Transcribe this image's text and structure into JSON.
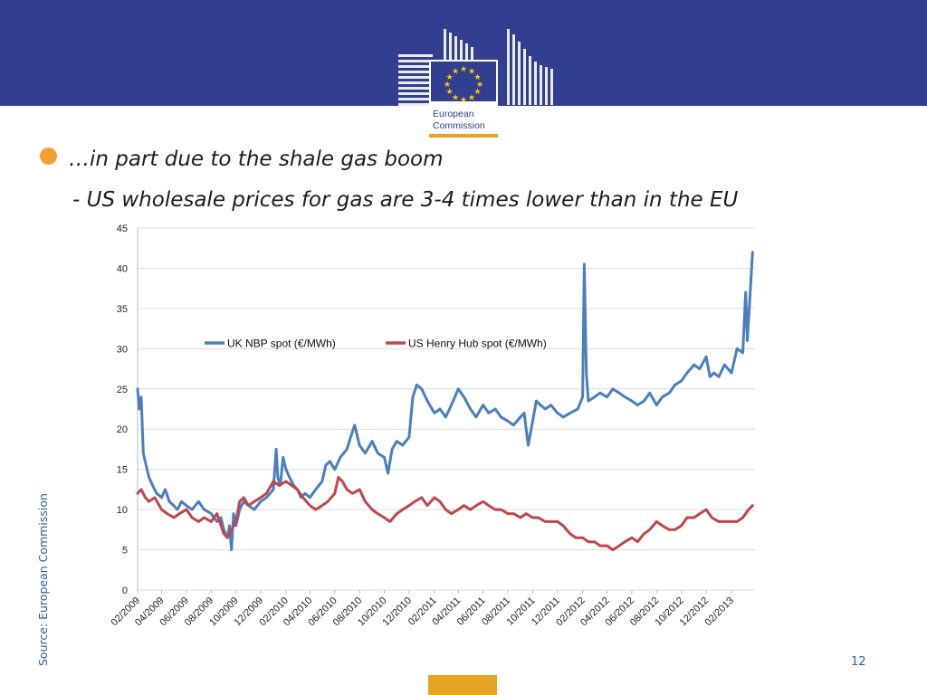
{
  "slide": {
    "bullet_line": "…in part due to the shale gas boom",
    "sub_line": "- US wholesale prices for gas are 3-4 times lower than in the EU",
    "source": "Source: European Commission",
    "page_number": "12",
    "logo_text_line1": "European",
    "logo_text_line2": "Commission"
  },
  "colors": {
    "header_band": "#323e8f",
    "bullet": "#f0a030",
    "accent_orange": "#e6a425",
    "uk_series": "#4a7ebf",
    "us_series": "#c0464a",
    "source_text": "#2a5da8"
  },
  "chart_data": {
    "type": "line",
    "title": "",
    "xlabel": "",
    "ylabel": "",
    "ylim": [
      0,
      45
    ],
    "yticks": [
      0,
      5,
      10,
      15,
      20,
      25,
      30,
      35,
      40,
      45
    ],
    "xlim": [
      "2009-02",
      "2013-03"
    ],
    "xtick_labels": [
      "02/2009",
      "04/2009",
      "06/2009",
      "08/2009",
      "10/2009",
      "12/2009",
      "02/2010",
      "04/2010",
      "06/2010",
      "08/2010",
      "10/2010",
      "12/2010",
      "02/2011",
      "04/2011",
      "06/2011",
      "08/2011",
      "10/2011",
      "12/2011",
      "02/2012",
      "04/2012",
      "06/2012",
      "08/2012",
      "10/2012",
      "12/2012",
      "02/2013"
    ],
    "grid": "horizontal",
    "legend_position": "inside-top",
    "series": [
      {
        "name": "UK NBP spot (€/MWh)",
        "color": "#4a7ebf",
        "points": [
          [
            "2009-02-01",
            25.0
          ],
          [
            "2009-02-05",
            22.5
          ],
          [
            "2009-02-10",
            24.0
          ],
          [
            "2009-02-15",
            17.0
          ],
          [
            "2009-02-22",
            15.5
          ],
          [
            "2009-03-01",
            14.0
          ],
          [
            "2009-03-10",
            13.0
          ],
          [
            "2009-03-20",
            12.0
          ],
          [
            "2009-04-01",
            11.5
          ],
          [
            "2009-04-10",
            12.5
          ],
          [
            "2009-04-20",
            11.0
          ],
          [
            "2009-05-01",
            10.5
          ],
          [
            "2009-05-10",
            10.0
          ],
          [
            "2009-05-20",
            11.0
          ],
          [
            "2009-06-01",
            10.5
          ],
          [
            "2009-06-15",
            10.0
          ],
          [
            "2009-07-01",
            11.0
          ],
          [
            "2009-07-15",
            10.0
          ],
          [
            "2009-08-01",
            9.5
          ],
          [
            "2009-08-15",
            8.5
          ],
          [
            "2009-08-25",
            9.0
          ],
          [
            "2009-09-01",
            7.5
          ],
          [
            "2009-09-10",
            6.5
          ],
          [
            "2009-09-15",
            8.0
          ],
          [
            "2009-09-20",
            5.0
          ],
          [
            "2009-09-25",
            9.5
          ],
          [
            "2009-10-01",
            8.0
          ],
          [
            "2009-10-10",
            10.0
          ],
          [
            "2009-10-20",
            11.0
          ],
          [
            "2009-11-01",
            10.5
          ],
          [
            "2009-11-15",
            10.0
          ],
          [
            "2009-12-01",
            11.0
          ],
          [
            "2009-12-15",
            11.5
          ],
          [
            "2010-01-01",
            12.5
          ],
          [
            "2010-01-08",
            17.5
          ],
          [
            "2010-01-12",
            14.0
          ],
          [
            "2010-01-18",
            13.0
          ],
          [
            "2010-01-25",
            16.5
          ],
          [
            "2010-02-01",
            15.0
          ],
          [
            "2010-02-10",
            14.0
          ],
          [
            "2010-02-20",
            13.0
          ],
          [
            "2010-03-01",
            12.5
          ],
          [
            "2010-03-10",
            11.5
          ],
          [
            "2010-03-20",
            12.0
          ],
          [
            "2010-04-01",
            11.5
          ],
          [
            "2010-04-15",
            12.5
          ],
          [
            "2010-05-01",
            13.5
          ],
          [
            "2010-05-10",
            15.5
          ],
          [
            "2010-05-20",
            16.0
          ],
          [
            "2010-06-01",
            15.0
          ],
          [
            "2010-06-15",
            16.5
          ],
          [
            "2010-07-01",
            17.5
          ],
          [
            "2010-07-10",
            19.0
          ],
          [
            "2010-07-20",
            20.5
          ],
          [
            "2010-08-01",
            18.0
          ],
          [
            "2010-08-15",
            17.0
          ],
          [
            "2010-09-01",
            18.5
          ],
          [
            "2010-09-15",
            17.0
          ],
          [
            "2010-10-01",
            16.5
          ],
          [
            "2010-10-10",
            14.5
          ],
          [
            "2010-10-20",
            17.5
          ],
          [
            "2010-11-01",
            18.5
          ],
          [
            "2010-11-15",
            18.0
          ],
          [
            "2010-12-01",
            19.0
          ],
          [
            "2010-12-10",
            24.0
          ],
          [
            "2010-12-20",
            25.5
          ],
          [
            "2011-01-01",
            25.0
          ],
          [
            "2011-01-15",
            23.5
          ],
          [
            "2011-02-01",
            22.0
          ],
          [
            "2011-02-15",
            22.5
          ],
          [
            "2011-03-01",
            21.5
          ],
          [
            "2011-03-15",
            23.0
          ],
          [
            "2011-04-01",
            25.0
          ],
          [
            "2011-04-15",
            24.0
          ],
          [
            "2011-05-01",
            22.5
          ],
          [
            "2011-05-15",
            21.5
          ],
          [
            "2011-06-01",
            23.0
          ],
          [
            "2011-06-15",
            22.0
          ],
          [
            "2011-07-01",
            22.5
          ],
          [
            "2011-07-15",
            21.5
          ],
          [
            "2011-08-01",
            21.0
          ],
          [
            "2011-08-15",
            20.5
          ],
          [
            "2011-09-01",
            21.5
          ],
          [
            "2011-09-10",
            22.0
          ],
          [
            "2011-09-20",
            18.0
          ],
          [
            "2011-10-01",
            21.0
          ],
          [
            "2011-10-10",
            23.5
          ],
          [
            "2011-10-20",
            23.0
          ],
          [
            "2011-11-01",
            22.5
          ],
          [
            "2011-11-15",
            23.0
          ],
          [
            "2011-12-01",
            22.0
          ],
          [
            "2011-12-15",
            21.5
          ],
          [
            "2012-01-01",
            22.0
          ],
          [
            "2012-01-20",
            22.5
          ],
          [
            "2012-02-01",
            24.0
          ],
          [
            "2012-02-05",
            40.5
          ],
          [
            "2012-02-10",
            27.0
          ],
          [
            "2012-02-15",
            23.5
          ],
          [
            "2012-03-01",
            24.0
          ],
          [
            "2012-03-15",
            24.5
          ],
          [
            "2012-04-01",
            24.0
          ],
          [
            "2012-04-15",
            25.0
          ],
          [
            "2012-05-01",
            24.5
          ],
          [
            "2012-05-15",
            24.0
          ],
          [
            "2012-06-01",
            23.5
          ],
          [
            "2012-06-15",
            23.0
          ],
          [
            "2012-07-01",
            23.5
          ],
          [
            "2012-07-15",
            24.5
          ],
          [
            "2012-08-01",
            23.0
          ],
          [
            "2012-08-15",
            24.0
          ],
          [
            "2012-09-01",
            24.5
          ],
          [
            "2012-09-15",
            25.5
          ],
          [
            "2012-10-01",
            26.0
          ],
          [
            "2012-10-15",
            27.0
          ],
          [
            "2012-11-01",
            28.0
          ],
          [
            "2012-11-15",
            27.5
          ],
          [
            "2012-12-01",
            29.0
          ],
          [
            "2012-12-10",
            26.5
          ],
          [
            "2012-12-20",
            27.0
          ],
          [
            "2013-01-01",
            26.5
          ],
          [
            "2013-01-15",
            28.0
          ],
          [
            "2013-02-01",
            27.0
          ],
          [
            "2013-02-15",
            30.0
          ],
          [
            "2013-03-01",
            29.5
          ],
          [
            "2013-03-08",
            37.0
          ],
          [
            "2013-03-12",
            31.0
          ],
          [
            "2013-03-18",
            36.0
          ],
          [
            "2013-03-25",
            42.0
          ]
        ]
      },
      {
        "name": "US Henry Hub spot (€/MWh)",
        "color": "#c0464a",
        "points": [
          [
            "2009-02-01",
            12.0
          ],
          [
            "2009-02-10",
            12.5
          ],
          [
            "2009-02-20",
            11.5
          ],
          [
            "2009-03-01",
            11.0
          ],
          [
            "2009-03-15",
            11.5
          ],
          [
            "2009-04-01",
            10.0
          ],
          [
            "2009-04-15",
            9.5
          ],
          [
            "2009-05-01",
            9.0
          ],
          [
            "2009-05-15",
            9.5
          ],
          [
            "2009-06-01",
            10.0
          ],
          [
            "2009-06-15",
            9.0
          ],
          [
            "2009-07-01",
            8.5
          ],
          [
            "2009-07-15",
            9.0
          ],
          [
            "2009-08-01",
            8.5
          ],
          [
            "2009-08-15",
            9.5
          ],
          [
            "2009-09-01",
            7.0
          ],
          [
            "2009-09-10",
            6.5
          ],
          [
            "2009-09-20",
            7.5
          ],
          [
            "2009-10-01",
            8.5
          ],
          [
            "2009-10-10",
            11.0
          ],
          [
            "2009-10-20",
            11.5
          ],
          [
            "2009-11-01",
            10.5
          ],
          [
            "2009-11-15",
            11.0
          ],
          [
            "2009-12-01",
            11.5
          ],
          [
            "2009-12-15",
            12.0
          ],
          [
            "2010-01-01",
            13.5
          ],
          [
            "2010-01-15",
            13.0
          ],
          [
            "2010-02-01",
            13.5
          ],
          [
            "2010-02-15",
            13.0
          ],
          [
            "2010-03-01",
            12.5
          ],
          [
            "2010-03-15",
            11.5
          ],
          [
            "2010-04-01",
            10.5
          ],
          [
            "2010-04-15",
            10.0
          ],
          [
            "2010-05-01",
            10.5
          ],
          [
            "2010-05-15",
            11.0
          ],
          [
            "2010-06-01",
            12.0
          ],
          [
            "2010-06-10",
            14.0
          ],
          [
            "2010-06-20",
            13.5
          ],
          [
            "2010-07-01",
            12.5
          ],
          [
            "2010-07-15",
            12.0
          ],
          [
            "2010-08-01",
            12.5
          ],
          [
            "2010-08-15",
            11.0
          ],
          [
            "2010-09-01",
            10.0
          ],
          [
            "2010-09-15",
            9.5
          ],
          [
            "2010-10-01",
            9.0
          ],
          [
            "2010-10-15",
            8.5
          ],
          [
            "2010-11-01",
            9.5
          ],
          [
            "2010-11-15",
            10.0
          ],
          [
            "2010-12-01",
            10.5
          ],
          [
            "2010-12-15",
            11.0
          ],
          [
            "2011-01-01",
            11.5
          ],
          [
            "2011-01-15",
            10.5
          ],
          [
            "2011-02-01",
            11.5
          ],
          [
            "2011-02-15",
            11.0
          ],
          [
            "2011-03-01",
            10.0
          ],
          [
            "2011-03-15",
            9.5
          ],
          [
            "2011-04-01",
            10.0
          ],
          [
            "2011-04-15",
            10.5
          ],
          [
            "2011-05-01",
            10.0
          ],
          [
            "2011-05-15",
            10.5
          ],
          [
            "2011-06-01",
            11.0
          ],
          [
            "2011-06-15",
            10.5
          ],
          [
            "2011-07-01",
            10.0
          ],
          [
            "2011-07-15",
            10.0
          ],
          [
            "2011-08-01",
            9.5
          ],
          [
            "2011-08-15",
            9.5
          ],
          [
            "2011-09-01",
            9.0
          ],
          [
            "2011-09-15",
            9.5
          ],
          [
            "2011-10-01",
            9.0
          ],
          [
            "2011-10-15",
            9.0
          ],
          [
            "2011-11-01",
            8.5
          ],
          [
            "2011-11-15",
            8.5
          ],
          [
            "2011-12-01",
            8.5
          ],
          [
            "2011-12-15",
            8.0
          ],
          [
            "2012-01-01",
            7.0
          ],
          [
            "2012-01-15",
            6.5
          ],
          [
            "2012-02-01",
            6.5
          ],
          [
            "2012-02-15",
            6.0
          ],
          [
            "2012-03-01",
            6.0
          ],
          [
            "2012-03-15",
            5.5
          ],
          [
            "2012-04-01",
            5.5
          ],
          [
            "2012-04-15",
            5.0
          ],
          [
            "2012-05-01",
            5.5
          ],
          [
            "2012-05-15",
            6.0
          ],
          [
            "2012-06-01",
            6.5
          ],
          [
            "2012-06-15",
            6.0
          ],
          [
            "2012-07-01",
            7.0
          ],
          [
            "2012-07-15",
            7.5
          ],
          [
            "2012-08-01",
            8.5
          ],
          [
            "2012-08-15",
            8.0
          ],
          [
            "2012-09-01",
            7.5
          ],
          [
            "2012-09-15",
            7.5
          ],
          [
            "2012-10-01",
            8.0
          ],
          [
            "2012-10-15",
            9.0
          ],
          [
            "2012-11-01",
            9.0
          ],
          [
            "2012-11-15",
            9.5
          ],
          [
            "2012-12-01",
            10.0
          ],
          [
            "2012-12-15",
            9.0
          ],
          [
            "2013-01-01",
            8.5
          ],
          [
            "2013-01-15",
            8.5
          ],
          [
            "2013-02-01",
            8.5
          ],
          [
            "2013-02-15",
            8.5
          ],
          [
            "2013-03-01",
            9.0
          ],
          [
            "2013-03-15",
            10.0
          ],
          [
            "2013-03-25",
            10.5
          ]
        ]
      }
    ]
  }
}
